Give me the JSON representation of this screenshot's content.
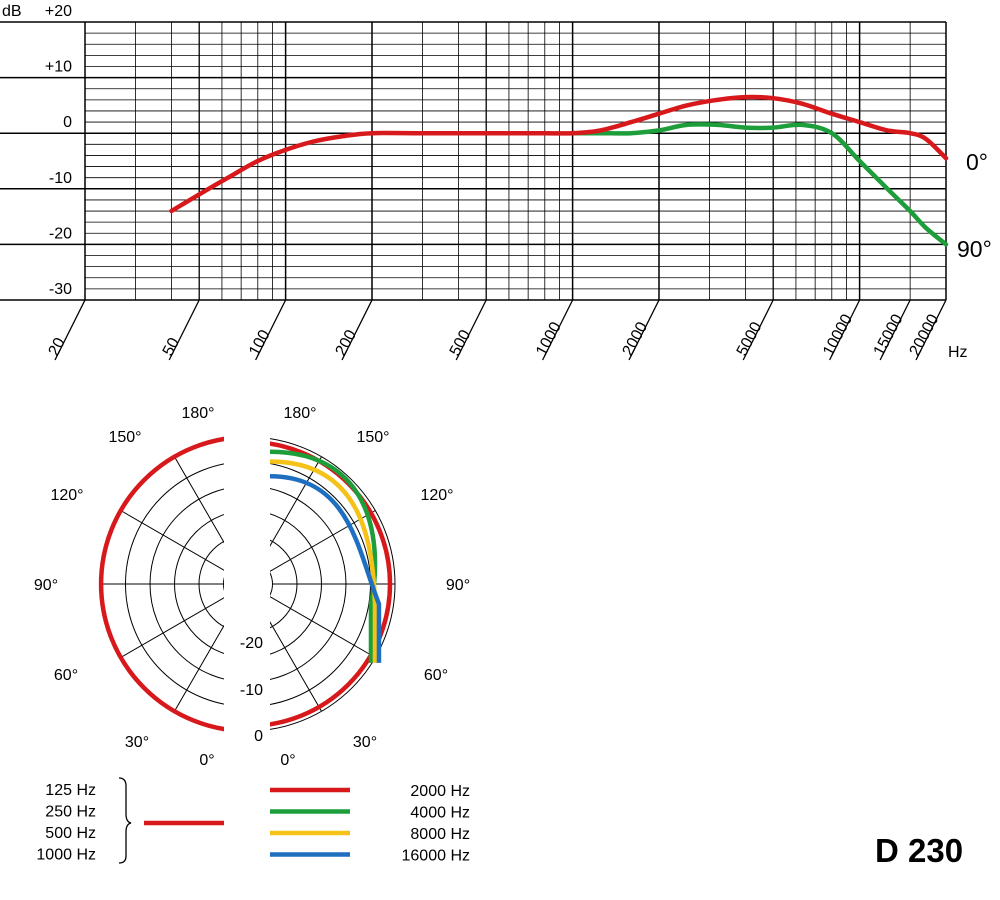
{
  "model_label": "D 230",
  "chart_data": [
    {
      "type": "line",
      "xscale": "log",
      "xlim": [
        20,
        20000
      ],
      "ylim": [
        -30,
        20
      ],
      "xlabel": "Hz",
      "ylabel": "dB",
      "grid": true,
      "x_ticks": [
        20,
        50,
        100,
        200,
        500,
        1000,
        2000,
        5000,
        10000,
        15000,
        20000
      ],
      "x_tick_labels": [
        "20",
        "50",
        "100",
        "200",
        "500",
        "1000",
        "2000",
        "5000",
        "10000",
        "15000",
        "20000"
      ],
      "y_ticks": [
        20,
        10,
        0,
        -10,
        -20,
        -30
      ],
      "y_tick_labels": [
        "+20",
        "+10",
        "0",
        "-10",
        "-20",
        "-30"
      ],
      "series": [
        {
          "name": "0°",
          "color": "#d7191c",
          "x": [
            40,
            50,
            63,
            80,
            100,
            125,
            160,
            200,
            300,
            500,
            800,
            1000,
            1250,
            1600,
            2000,
            2500,
            3200,
            4000,
            5000,
            6300,
            8000,
            10000,
            12500,
            15000,
            17000,
            20000
          ],
          "y": [
            -14,
            -11,
            -8,
            -5,
            -3,
            -1.5,
            -0.5,
            0,
            0,
            0,
            0,
            0,
            0.5,
            2,
            3.5,
            5,
            6,
            6.5,
            6.3,
            5.3,
            3.5,
            2,
            0.5,
            0,
            -1,
            -4.5
          ]
        },
        {
          "name": "90°",
          "color": "#1e9e3a",
          "x": [
            1000,
            1250,
            1600,
            2000,
            2500,
            3200,
            4000,
            5000,
            6300,
            8000,
            10000,
            12500,
            15000,
            17000,
            20000
          ],
          "y": [
            0,
            0,
            0,
            0.5,
            1.5,
            1.5,
            1,
            1,
            1.5,
            0,
            -5,
            -10,
            -14,
            -17,
            -20
          ]
        }
      ]
    },
    {
      "type": "polar",
      "angle_labels_left": [
        "180°",
        "150°",
        "120°",
        "90°",
        "60°",
        "30°",
        "0°"
      ],
      "angle_labels_right": [
        "180°",
        "150°",
        "120°",
        "90°",
        "60°",
        "30°",
        "0°"
      ],
      "radial_labels": [
        "-20",
        "-10",
        "0"
      ],
      "left_legend": [
        "125 Hz",
        "250 Hz",
        "500 Hz",
        "1000 Hz"
      ],
      "series": [
        {
          "name": "125 Hz / 250 Hz / 500 Hz / 1000 Hz",
          "color": "#d7191c",
          "side": "left",
          "level_db": 0
        },
        {
          "name": "2000 Hz",
          "color": "#d7191c",
          "side": "right",
          "level_db": -1
        },
        {
          "name": "4000 Hz",
          "color": "#1e9e3a",
          "side": "right",
          "level_db": -3
        },
        {
          "name": "8000 Hz",
          "color": "#f5c218",
          "side": "right",
          "level_db": -5
        },
        {
          "name": "16000 Hz",
          "color": "#1f6fc0",
          "side": "right",
          "level_db": -8
        }
      ]
    }
  ]
}
